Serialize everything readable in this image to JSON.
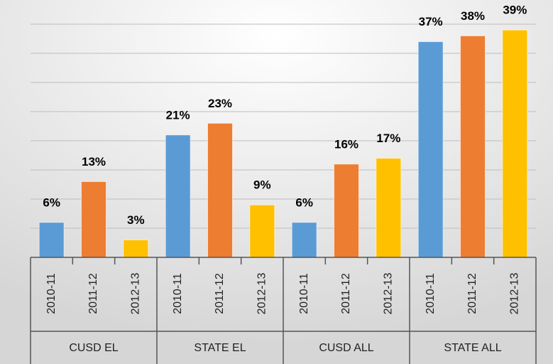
{
  "chart_data": {
    "type": "bar",
    "categories": [
      "CUSD EL",
      "STATE EL",
      "CUSD ALL",
      "STATE ALL"
    ],
    "series": [
      {
        "name": "2010-11",
        "color": "#5b9bd5",
        "values": [
          6,
          21,
          6,
          37
        ],
        "value_labels": [
          "6%",
          "21%",
          "6%",
          "37%"
        ]
      },
      {
        "name": "2011-12",
        "color": "#ed7d31",
        "values": [
          13,
          23,
          16,
          38
        ],
        "value_labels": [
          "13%",
          "23%",
          "16%",
          "38%"
        ]
      },
      {
        "name": "2012-13",
        "color": "#ffc000",
        "values": [
          3,
          9,
          17,
          39
        ],
        "value_labels": [
          "3%",
          "9%",
          "17%",
          "39%"
        ]
      }
    ],
    "ylim": [
      0,
      40
    ],
    "yticks": [
      0,
      5,
      10,
      15,
      20,
      25,
      30,
      35,
      40
    ],
    "grid": true
  }
}
